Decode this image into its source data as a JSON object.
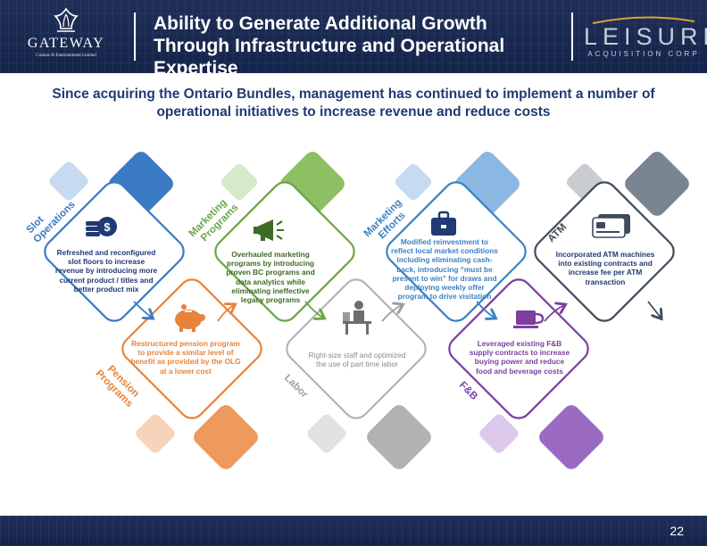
{
  "header": {
    "title": "Ability to Generate Additional Growth Through Infrastructure and Operational Expertise",
    "logo_left": {
      "name": "GATEWAY",
      "tagline": "Casinos & Entertainment Limited"
    },
    "logo_right": {
      "name": "LEISURE",
      "tagline": "ACQUISITION CORP"
    }
  },
  "subtitle": "Since acquiring the Ontario Bundles, management has continued to implement a number of operational initiatives to increase revenue and reduce costs",
  "initiatives": [
    {
      "label": "Slot Operations",
      "icon": "dollar-coins-icon",
      "color": "#3b7ac4",
      "text": "Refreshed and reconfigured slot floors to increase revenue by introducing more current product / titles and better product mix"
    },
    {
      "label": "Marketing Programs",
      "icon": "megaphone-icon",
      "color": "#6ba543",
      "text": "Overhauled marketing programs by introducing proven BC programs and data analytics while eliminating ineffective legacy programs"
    },
    {
      "label": "Marketing Efforts",
      "icon": "briefcase-icon",
      "color": "#3b82c4",
      "text": "Modified reinvestment to reflect local market conditions including eliminating cash-back, introducing “must be present to win” for draws and deploying weekly offer program to drive visitation"
    },
    {
      "label": "ATM",
      "icon": "credit-card-icon",
      "color": "#3f4b5c",
      "text": "Incorporated ATM machines into existing contracts and increase fee per ATM transaction"
    },
    {
      "label": "Pension Programs",
      "icon": "piggy-bank-icon",
      "color": "#e8833a",
      "text": "Restructured pension program to provide a similar level of benefit as provided by the OLG at a lower cost"
    },
    {
      "label": "Labor",
      "icon": "worker-desk-icon",
      "color": "#9e9e9e",
      "text": "Right-size staff and optimized the use of part time labor"
    },
    {
      "label": "F&B",
      "icon": "coffee-cup-icon",
      "color": "#7b3fa0",
      "text": "Leveraged existing F&B supply contracts to increase buying power and reduce food and beverage costs"
    }
  ],
  "page_number": "22"
}
